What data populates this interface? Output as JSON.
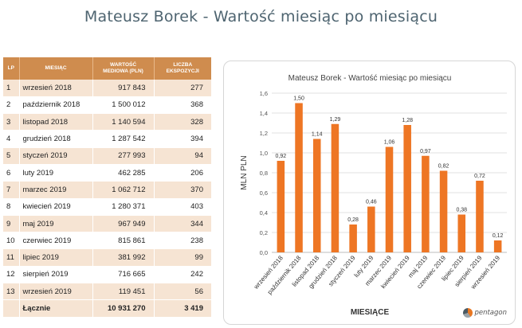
{
  "page": {
    "title": "Mateusz Borek - Wartość miesiąc po miesiącu"
  },
  "table": {
    "headers": {
      "lp": "LP",
      "month": "MIESIĄC",
      "value_line1": "WARTOŚĆ",
      "value_line2": "MEDIOWA (PLN)",
      "count_line1": "LICZBA",
      "count_line2": "EKSPOZYCJI"
    },
    "rows": [
      {
        "lp": "1",
        "month": "wrzesień 2018",
        "value": "917 843",
        "count": "277"
      },
      {
        "lp": "2",
        "month": "październik 2018",
        "value": "1 500 012",
        "count": "368"
      },
      {
        "lp": "3",
        "month": "listopad 2018",
        "value": "1 140 594",
        "count": "328"
      },
      {
        "lp": "4",
        "month": "grudzień 2018",
        "value": "1 287 542",
        "count": "394"
      },
      {
        "lp": "5",
        "month": "styczeń 2019",
        "value": "277 993",
        "count": "94"
      },
      {
        "lp": "6",
        "month": "luty 2019",
        "value": "462 285",
        "count": "206"
      },
      {
        "lp": "7",
        "month": "marzec 2019",
        "value": "1 062 712",
        "count": "370"
      },
      {
        "lp": "8",
        "month": "kwiecień 2019",
        "value": "1 280 371",
        "count": "403"
      },
      {
        "lp": "9",
        "month": "maj 2019",
        "value": "967 949",
        "count": "344"
      },
      {
        "lp": "10",
        "month": "czerwiec 2019",
        "value": "815 861",
        "count": "238"
      },
      {
        "lp": "11",
        "month": "lipiec 2019",
        "value": "381 992",
        "count": "99"
      },
      {
        "lp": "12",
        "month": "sierpień 2019",
        "value": "716 665",
        "count": "242"
      },
      {
        "lp": "13",
        "month": "wrzesień 2019",
        "value": "119 451",
        "count": "56"
      }
    ],
    "total": {
      "label": "Łącznie",
      "value": "10 931 270",
      "count": "3 419"
    }
  },
  "chart_data": {
    "type": "bar",
    "title": "Mateusz Borek - Wartość miesiąc po miesiącu",
    "ylabel": "MLN PLN",
    "xlabel": "MIESIĄCE",
    "ylim": [
      0,
      1.6
    ],
    "yticks": [
      "0,0",
      "0,2",
      "0,4",
      "0,6",
      "0,8",
      "1,0",
      "1,2",
      "1,4",
      "1,6"
    ],
    "categories": [
      "wrzesień 2018",
      "październik 2018",
      "listopad 2018",
      "grudzień 2018",
      "styczeń 2019",
      "luty 2019",
      "marzec 2019",
      "kwiecień 2019",
      "maj 2019",
      "czerwiec 2019",
      "lipiec 2019",
      "sierpień 2019",
      "wrzesień 2019"
    ],
    "values": [
      0.92,
      1.5,
      1.14,
      1.29,
      0.28,
      0.46,
      1.06,
      1.28,
      0.97,
      0.82,
      0.38,
      0.72,
      0.12
    ],
    "value_labels": [
      "0,92",
      "1,50",
      "1,14",
      "1,29",
      "0,28",
      "0,46",
      "1,06",
      "1,28",
      "0,97",
      "0,82",
      "0,38",
      "0,72",
      "0,12"
    ],
    "bar_color": "#ee7624",
    "grid": true,
    "legend": "none"
  },
  "logo": {
    "icon": "pentagon-logo-icon",
    "text": "pentagon"
  }
}
